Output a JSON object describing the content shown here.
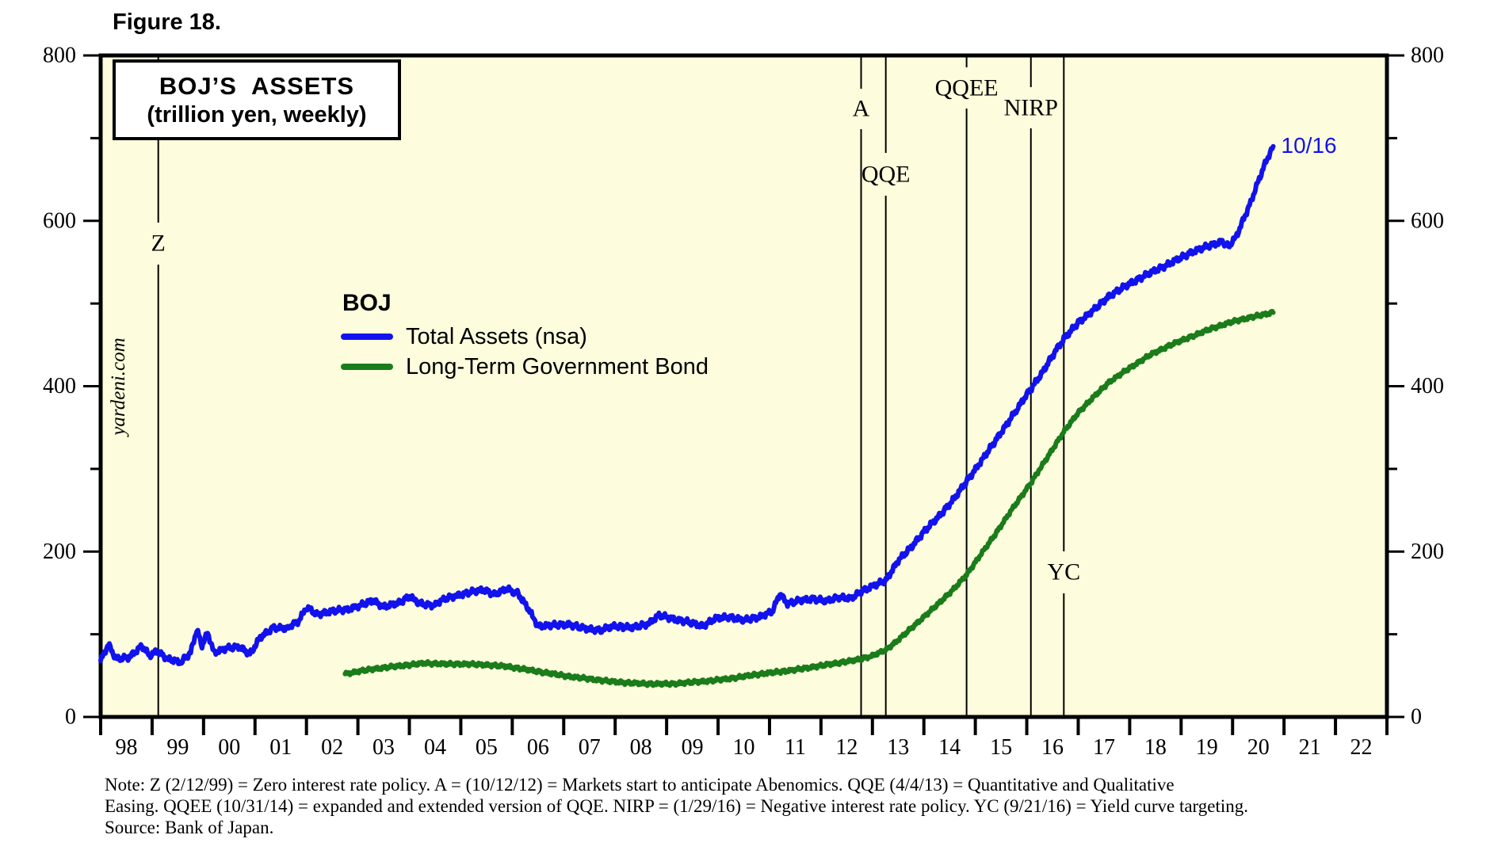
{
  "figure_label": "Figure 18.",
  "title_box": {
    "title": "BOJ’S  ASSETS",
    "subtitle": "(trillion yen, weekly)"
  },
  "watermark": "yardeni.com",
  "legend": {
    "header": "BOJ"
  },
  "notes": {
    "line1": "Note: Z (2/12/99) = Zero interest rate policy. A = (10/12/12) = Markets start to anticipate Abenomics. QQE (4/4/13) = Quantitative and Qualitative",
    "line2": "Easing. QQEE (10/31/14) = expanded and extended version of QQE. NIRP = (1/29/16) = Negative interest rate policy. YC (9/21/16) = Yield curve targeting.",
    "line3": "Source: Bank of Japan."
  },
  "colors": {
    "plot_bg": "#FDFCDC",
    "blue": "#1212EE",
    "green": "#1A7C1A",
    "axis": "#000000"
  },
  "chart_data": {
    "type": "line",
    "title": "BOJ'S ASSETS",
    "subtitle": "(trillion yen, weekly)",
    "ylabel": "trillion yen",
    "ylim": [
      0,
      800
    ],
    "x_range": [
      1998,
      2023
    ],
    "grid": false,
    "legend_position": "inside-upper-left",
    "y_major_ticks": [
      0,
      200,
      400,
      600,
      800
    ],
    "y_minor_ticks": [
      100,
      300,
      500,
      700
    ],
    "x_tick_labels": [
      "98",
      "99",
      "00",
      "01",
      "02",
      "03",
      "04",
      "05",
      "06",
      "07",
      "08",
      "09",
      "10",
      "11",
      "12",
      "13",
      "14",
      "15",
      "16",
      "17",
      "18",
      "19",
      "20",
      "21",
      "22"
    ],
    "annotations": [
      {
        "label": "Z",
        "year": 1999.12,
        "label_y": 307,
        "gap": [
          281,
          334
        ]
      },
      {
        "label": "A",
        "year": 2012.78,
        "label_y": 137,
        "gap": [
          112,
          163
        ]
      },
      {
        "label": "QQE",
        "year": 2013.26,
        "label_y": 220,
        "gap": [
          193,
          247
        ]
      },
      {
        "label": "QQEE",
        "year": 2014.83,
        "label_y": 111,
        "gap": [
          85,
          137
        ]
      },
      {
        "label": "NIRP",
        "year": 2016.08,
        "label_y": 136,
        "gap": [
          110,
          162
        ]
      },
      {
        "label": "YC",
        "year": 2016.72,
        "label_y": 722,
        "gap": [
          696,
          749
        ]
      }
    ],
    "end_label": {
      "text": "10/16",
      "x_year": 2020.79,
      "y_value": 690
    },
    "series": [
      {
        "name": "Total Assets (nsa)",
        "color": "#1212EE",
        "jitter": 4,
        "points": [
          [
            1998.0,
            68
          ],
          [
            1998.15,
            88
          ],
          [
            1998.3,
            70
          ],
          [
            1998.55,
            72
          ],
          [
            1998.8,
            86
          ],
          [
            1998.95,
            74
          ],
          [
            1999.1,
            80
          ],
          [
            1999.3,
            70
          ],
          [
            1999.55,
            66
          ],
          [
            1999.75,
            78
          ],
          [
            1999.87,
            106
          ],
          [
            1999.97,
            86
          ],
          [
            2000.08,
            102
          ],
          [
            2000.2,
            78
          ],
          [
            2000.45,
            83
          ],
          [
            2000.7,
            85
          ],
          [
            2000.9,
            76
          ],
          [
            2001.1,
            96
          ],
          [
            2001.35,
            108
          ],
          [
            2001.6,
            107
          ],
          [
            2001.85,
            116
          ],
          [
            2002.0,
            133
          ],
          [
            2002.2,
            124
          ],
          [
            2002.5,
            128
          ],
          [
            2002.8,
            130
          ],
          [
            2003.1,
            136
          ],
          [
            2003.3,
            141
          ],
          [
            2003.5,
            133
          ],
          [
            2003.8,
            138
          ],
          [
            2004.0,
            146
          ],
          [
            2004.2,
            137
          ],
          [
            2004.45,
            135
          ],
          [
            2004.7,
            143
          ],
          [
            2005.0,
            148
          ],
          [
            2005.2,
            151
          ],
          [
            2005.45,
            154
          ],
          [
            2005.65,
            148
          ],
          [
            2005.9,
            155
          ],
          [
            2006.1,
            150
          ],
          [
            2006.3,
            132
          ],
          [
            2006.5,
            110
          ],
          [
            2006.8,
            111
          ],
          [
            2007.1,
            112
          ],
          [
            2007.4,
            107
          ],
          [
            2007.7,
            105
          ],
          [
            2008.0,
            110
          ],
          [
            2008.35,
            108
          ],
          [
            2008.65,
            113
          ],
          [
            2008.85,
            123
          ],
          [
            2009.1,
            119
          ],
          [
            2009.4,
            115
          ],
          [
            2009.7,
            110
          ],
          [
            2009.95,
            119
          ],
          [
            2010.2,
            121
          ],
          [
            2010.5,
            117
          ],
          [
            2010.8,
            121
          ],
          [
            2011.05,
            127
          ],
          [
            2011.2,
            149
          ],
          [
            2011.35,
            137
          ],
          [
            2011.6,
            141
          ],
          [
            2011.85,
            143
          ],
          [
            2012.1,
            140
          ],
          [
            2012.35,
            145
          ],
          [
            2012.6,
            143
          ],
          [
            2012.78,
            152
          ],
          [
            2013.0,
            158
          ],
          [
            2013.26,
            165
          ],
          [
            2013.5,
            189
          ],
          [
            2013.75,
            205
          ],
          [
            2014.0,
            224
          ],
          [
            2014.3,
            243
          ],
          [
            2014.6,
            265
          ],
          [
            2014.83,
            285
          ],
          [
            2015.1,
            308
          ],
          [
            2015.4,
            335
          ],
          [
            2015.7,
            362
          ],
          [
            2016.0,
            390
          ],
          [
            2016.3,
            416
          ],
          [
            2016.5,
            437
          ],
          [
            2016.72,
            457
          ],
          [
            2017.0,
            477
          ],
          [
            2017.3,
            492
          ],
          [
            2017.6,
            509
          ],
          [
            2018.0,
            524
          ],
          [
            2018.4,
            537
          ],
          [
            2018.8,
            549
          ],
          [
            2019.2,
            562
          ],
          [
            2019.55,
            570
          ],
          [
            2019.8,
            575
          ],
          [
            2019.92,
            569
          ],
          [
            2020.05,
            579
          ],
          [
            2020.1,
            585
          ],
          [
            2020.2,
            600
          ],
          [
            2020.35,
            622
          ],
          [
            2020.5,
            648
          ],
          [
            2020.65,
            672
          ],
          [
            2020.79,
            690
          ]
        ]
      },
      {
        "name": "Long-Term Government Bond",
        "color": "#1A7C1A",
        "jitter": 2.5,
        "points": [
          [
            2002.75,
            52
          ],
          [
            2003.0,
            55
          ],
          [
            2003.3,
            58
          ],
          [
            2003.7,
            61
          ],
          [
            2004.0,
            63
          ],
          [
            2004.3,
            65
          ],
          [
            2004.7,
            64
          ],
          [
            2005.1,
            64
          ],
          [
            2005.5,
            63
          ],
          [
            2005.9,
            61
          ],
          [
            2006.3,
            57
          ],
          [
            2006.7,
            53
          ],
          [
            2007.1,
            49
          ],
          [
            2007.5,
            46
          ],
          [
            2007.9,
            43
          ],
          [
            2008.3,
            41
          ],
          [
            2008.7,
            40
          ],
          [
            2009.1,
            40
          ],
          [
            2009.5,
            42
          ],
          [
            2009.9,
            44
          ],
          [
            2010.3,
            47
          ],
          [
            2010.7,
            51
          ],
          [
            2011.1,
            54
          ],
          [
            2011.5,
            57
          ],
          [
            2011.9,
            61
          ],
          [
            2012.3,
            65
          ],
          [
            2012.7,
            69
          ],
          [
            2013.0,
            74
          ],
          [
            2013.26,
            81
          ],
          [
            2013.5,
            93
          ],
          [
            2013.75,
            107
          ],
          [
            2014.0,
            121
          ],
          [
            2014.3,
            138
          ],
          [
            2014.6,
            156
          ],
          [
            2014.83,
            172
          ],
          [
            2015.1,
            196
          ],
          [
            2015.4,
            222
          ],
          [
            2015.7,
            250
          ],
          [
            2016.08,
            283
          ],
          [
            2016.4,
            314
          ],
          [
            2016.72,
            345
          ],
          [
            2017.0,
            368
          ],
          [
            2017.3,
            387
          ],
          [
            2017.6,
            405
          ],
          [
            2018.0,
            422
          ],
          [
            2018.4,
            438
          ],
          [
            2018.8,
            450
          ],
          [
            2019.2,
            460
          ],
          [
            2019.6,
            470
          ],
          [
            2020.0,
            478
          ],
          [
            2020.4,
            484
          ],
          [
            2020.79,
            489
          ]
        ]
      }
    ]
  }
}
